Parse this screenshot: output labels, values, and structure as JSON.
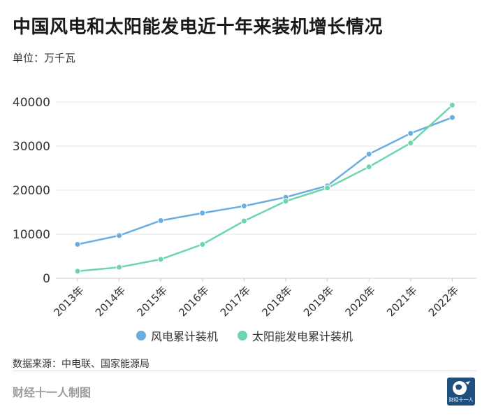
{
  "header": {
    "title": "中国风电和太阳能发电近十年来装机增长情况",
    "unit": "单位：万千瓦"
  },
  "legend": {
    "items": [
      {
        "label": "风电累计装机",
        "color": "#6aaee0"
      },
      {
        "label": "太阳能发电累计装机",
        "color": "#6ed6ac"
      }
    ]
  },
  "source": "数据来源：中电联、国家能源局",
  "footer": {
    "credit": "财经十一人制图",
    "logo_text": "财经十一人"
  },
  "chart_data": {
    "type": "line",
    "title": "中国风电和太阳能发电近十年来装机增长情况",
    "ylabel": "单位：万千瓦",
    "categories": [
      "2013年",
      "2014年",
      "2015年",
      "2016年",
      "2017年",
      "2018年",
      "2019年",
      "2020年",
      "2021年",
      "2022年"
    ],
    "ylim": [
      0,
      40000
    ],
    "yticks": [
      0,
      10000,
      20000,
      30000,
      40000
    ],
    "grid": true,
    "legend_position": "bottom",
    "series": [
      {
        "name": "风电累计装机",
        "color": "#6aaee0",
        "values": [
          7700,
          9700,
          13100,
          14800,
          16400,
          18400,
          21000,
          28200,
          32900,
          36500
        ]
      },
      {
        "name": "太阳能发电累计装机",
        "color": "#6ed6ac",
        "values": [
          1600,
          2500,
          4300,
          7700,
          13000,
          17500,
          20500,
          25300,
          30700,
          39300
        ]
      }
    ]
  }
}
